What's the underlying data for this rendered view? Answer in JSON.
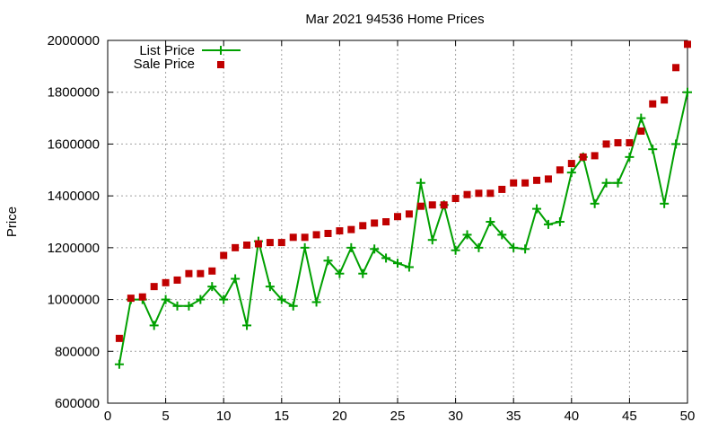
{
  "chart_data": {
    "type": "line",
    "title": "Mar 2021 94536 Home Prices",
    "xlabel": "",
    "ylabel": "Price",
    "xlim": [
      0,
      50
    ],
    "ylim": [
      600000,
      2000000
    ],
    "xticks": [
      0,
      5,
      10,
      15,
      20,
      25,
      30,
      35,
      40,
      45,
      50
    ],
    "yticks": [
      600000,
      800000,
      1000000,
      1200000,
      1400000,
      1600000,
      1800000,
      2000000
    ],
    "grid": true,
    "legend_position": "top-left",
    "colors": {
      "list": "#00a000",
      "sale": "#c00000"
    },
    "series": [
      {
        "name": "List Price",
        "style": "line+cross",
        "x": [
          1,
          2,
          3,
          4,
          5,
          6,
          7,
          8,
          9,
          10,
          11,
          12,
          13,
          14,
          15,
          16,
          17,
          18,
          19,
          20,
          21,
          22,
          23,
          24,
          25,
          26,
          27,
          28,
          29,
          30,
          31,
          32,
          33,
          34,
          35,
          36,
          37,
          38,
          39,
          40,
          41,
          42,
          43,
          44,
          45,
          46,
          47,
          48,
          49,
          50
        ],
        "values": [
          750000,
          1000000,
          1000000,
          900000,
          1000000,
          975000,
          975000,
          1000000,
          1050000,
          1000000,
          1080000,
          900000,
          1225000,
          1050000,
          1000000,
          975000,
          1200000,
          990000,
          1150000,
          1100000,
          1200000,
          1100000,
          1195000,
          1160000,
          1140000,
          1125000,
          1450000,
          1230000,
          1365000,
          1190000,
          1250000,
          1200000,
          1300000,
          1250000,
          1200000,
          1195000,
          1350000,
          1290000,
          1300000,
          1490000,
          1550000,
          1370000,
          1450000,
          1450000,
          1550000,
          1700000,
          1580000,
          1370000,
          1600000,
          1800000
        ]
      },
      {
        "name": "Sale Price",
        "style": "square",
        "x": [
          1,
          2,
          3,
          4,
          5,
          6,
          7,
          8,
          9,
          10,
          11,
          12,
          13,
          14,
          15,
          16,
          17,
          18,
          19,
          20,
          21,
          22,
          23,
          24,
          25,
          26,
          27,
          28,
          29,
          30,
          31,
          32,
          33,
          34,
          35,
          36,
          37,
          38,
          39,
          40,
          41,
          42,
          43,
          44,
          45,
          46,
          47,
          48,
          49,
          50
        ],
        "values": [
          850000,
          1005000,
          1010000,
          1050000,
          1065000,
          1075000,
          1100000,
          1100000,
          1110000,
          1170000,
          1200000,
          1210000,
          1215000,
          1220000,
          1220000,
          1240000,
          1240000,
          1250000,
          1255000,
          1265000,
          1270000,
          1285000,
          1295000,
          1300000,
          1320000,
          1330000,
          1360000,
          1365000,
          1365000,
          1390000,
          1405000,
          1410000,
          1410000,
          1425000,
          1450000,
          1450000,
          1460000,
          1465000,
          1500000,
          1525000,
          1550000,
          1555000,
          1600000,
          1605000,
          1605000,
          1650000,
          1755000,
          1770000,
          1895000,
          1985000
        ]
      }
    ]
  }
}
